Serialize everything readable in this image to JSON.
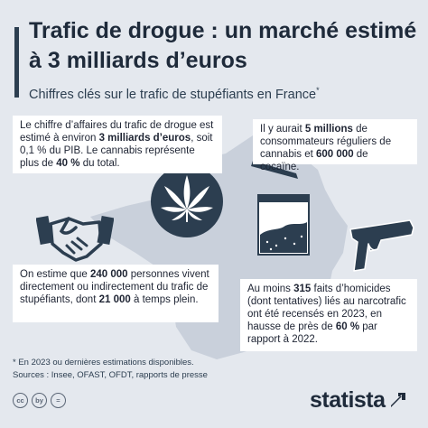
{
  "header": {
    "title": "Trafic de drogue : un marché estimé à 3 milliards d’euros",
    "subtitle": "Chiffres clés sur le trafic de stupéfiants en France",
    "subtitle_mark": "*"
  },
  "facts": {
    "revenue": {
      "t1": "Le chiffre d’affaires du trafic de drogue est estimé à environ ",
      "b1": "3 milliards d’euros",
      "t2": ", soit 0,1 % du PIB. Le cannabis représente plus de ",
      "b2": "40 %",
      "t3": " du total."
    },
    "consumers": {
      "t1": "Il y aurait ",
      "b1": "5 millions",
      "t2": " de consommateurs réguliers de cannabis et ",
      "b2": "600 000",
      "t3": " de cocaïne."
    },
    "jobs": {
      "t1": "On estime que ",
      "b1": "240 000",
      "t2": " personnes vivent directement ou indirectement du trafic de stupéfiants, dont ",
      "b2": "21 000",
      "t3": " à temps plein."
    },
    "homicides": {
      "t1": "Au moins ",
      "b1": "315",
      "t2": " faits d’homicides (dont tentatives) liés au narcotrafic ont été recensés en 2023, en hausse de près de ",
      "b2": "60 %",
      "t3": " par rapport à 2022."
    }
  },
  "footnote": {
    "note": "* En 2023 ou dernières estimations disponibles.",
    "sources": "Sources : Insee, OFAST, OFDT, rapports de presse"
  },
  "footer": {
    "license_icons": [
      "cc",
      "by",
      "="
    ],
    "brand": "statista"
  },
  "icons": [
    "cannabis-leaf-icon",
    "joint-icon",
    "cocaine-bag-icon",
    "handshake-icon",
    "pistol-icon",
    "france-map-icon",
    "statista-logo-icon"
  ],
  "colors": {
    "background": "#e4e8ee",
    "map": "#c9d0db",
    "icon": "#2c3e50",
    "card": "#ffffff"
  }
}
